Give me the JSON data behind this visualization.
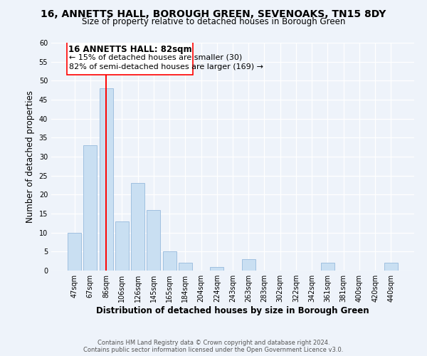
{
  "title": "16, ANNETTS HALL, BOROUGH GREEN, SEVENOAKS, TN15 8DY",
  "subtitle": "Size of property relative to detached houses in Borough Green",
  "xlabel": "Distribution of detached houses by size in Borough Green",
  "ylabel": "Number of detached properties",
  "bar_labels": [
    "47sqm",
    "67sqm",
    "86sqm",
    "106sqm",
    "126sqm",
    "145sqm",
    "165sqm",
    "184sqm",
    "204sqm",
    "224sqm",
    "243sqm",
    "263sqm",
    "283sqm",
    "302sqm",
    "322sqm",
    "342sqm",
    "361sqm",
    "381sqm",
    "400sqm",
    "420sqm",
    "440sqm"
  ],
  "bar_values": [
    10,
    33,
    48,
    13,
    23,
    16,
    5,
    2,
    0,
    1,
    0,
    3,
    0,
    0,
    0,
    0,
    2,
    0,
    0,
    0,
    2
  ],
  "bar_color": "#c9dff2",
  "bar_edge_color": "#a0c0e0",
  "redline_index": 2,
  "ylim": [
    0,
    60
  ],
  "yticks": [
    0,
    5,
    10,
    15,
    20,
    25,
    30,
    35,
    40,
    45,
    50,
    55,
    60
  ],
  "annotation_title": "16 ANNETTS HALL: 82sqm",
  "annotation_line1": "← 15% of detached houses are smaller (30)",
  "annotation_line2": "82% of semi-detached houses are larger (169) →",
  "footer_line1": "Contains HM Land Registry data © Crown copyright and database right 2024.",
  "footer_line2": "Contains public sector information licensed under the Open Government Licence v3.0.",
  "background_color": "#eef3fa",
  "grid_color": "#ffffff",
  "title_fontsize": 10,
  "subtitle_fontsize": 8.5,
  "axis_label_fontsize": 8.5,
  "tick_fontsize": 7,
  "annotation_title_fontsize": 8.5,
  "annotation_body_fontsize": 8,
  "footer_fontsize": 6
}
